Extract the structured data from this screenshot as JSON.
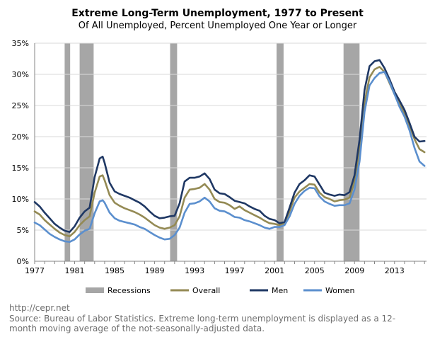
{
  "title": "Extreme Long-Term Unemployment, 1977 to Present",
  "subtitle": "Of All Unemployed, Percent Unemployed One Year or Longer",
  "source_url": "http://cepr.net",
  "source_note": "Source: Bureau of Labor Statistics. Extreme long-term unemployment is displayed as a 12-month moving average of the not-seasonally-adjusted data.",
  "colors": {
    "recessions": "#a6a6a6",
    "overall": "#948a54",
    "men": "#1f3864",
    "women": "#5b8fce",
    "grid": "#d9d9d9",
    "axis": "#868686"
  },
  "chart_data": {
    "type": "line",
    "title": "Extreme Long-Term Unemployment, 1977 to Present",
    "subtitle": "Of All Unemployed, Percent Unemployed One Year or Longer",
    "xlim": [
      1977.0,
      2016.2
    ],
    "ylim": [
      0,
      35
    ],
    "x_ticks": [
      "1977",
      "1981",
      "1985",
      "1989",
      "1993",
      "1997",
      "2001",
      "2005",
      "2009",
      "2013"
    ],
    "x_tick_values": [
      1977,
      1981,
      1985,
      1989,
      1993,
      1997,
      2001,
      2005,
      2009,
      2013
    ],
    "y_ticks": [
      "0%",
      "5%",
      "10%",
      "15%",
      "20%",
      "25%",
      "30%",
      "35%"
    ],
    "y_tick_values": [
      0,
      5,
      10,
      15,
      20,
      25,
      30,
      35
    ],
    "grid": "horizontal",
    "legend_position": "bottom",
    "recessions": {
      "name": "Recessions",
      "periods": [
        [
          1980.0,
          1980.55
        ],
        [
          1981.5,
          1982.9
        ],
        [
          1990.55,
          1991.25
        ],
        [
          2001.2,
          2001.9
        ],
        [
          2007.9,
          2009.5
        ]
      ]
    },
    "series": [
      {
        "name": "Overall",
        "color": "#948a54",
        "x": [
          1977.0,
          1977.5,
          1978.0,
          1978.5,
          1979.0,
          1979.5,
          1980.0,
          1980.5,
          1981.0,
          1981.5,
          1982.0,
          1982.5,
          1983.0,
          1983.5,
          1983.8,
          1984.0,
          1984.5,
          1985.0,
          1985.5,
          1986.0,
          1986.5,
          1987.0,
          1987.5,
          1988.0,
          1988.5,
          1989.0,
          1989.5,
          1990.0,
          1990.5,
          1991.0,
          1991.5,
          1992.0,
          1992.5,
          1993.0,
          1993.5,
          1994.0,
          1994.5,
          1995.0,
          1995.5,
          1996.0,
          1996.5,
          1997.0,
          1997.5,
          1998.0,
          1998.5,
          1999.0,
          1999.5,
          2000.0,
          2000.5,
          2001.0,
          2001.5,
          2002.0,
          2002.5,
          2003.0,
          2003.5,
          2004.0,
          2004.5,
          2005.0,
          2005.5,
          2006.0,
          2006.5,
          2007.0,
          2007.5,
          2008.0,
          2008.5,
          2009.0,
          2009.5,
          2010.0,
          2010.5,
          2011.0,
          2011.5,
          2012.0,
          2012.5,
          2013.0,
          2013.5,
          2014.0,
          2014.5,
          2015.0,
          2015.5,
          2016.0
        ],
        "y": [
          8.0,
          7.5,
          6.6,
          5.9,
          5.2,
          4.6,
          4.2,
          4.0,
          4.7,
          5.8,
          6.6,
          7.2,
          11.0,
          13.6,
          13.8,
          13.0,
          10.6,
          9.4,
          8.9,
          8.5,
          8.2,
          7.9,
          7.5,
          7.0,
          6.4,
          5.8,
          5.4,
          5.2,
          5.4,
          5.8,
          7.2,
          10.2,
          11.5,
          11.6,
          11.8,
          12.4,
          11.5,
          10.0,
          9.5,
          9.4,
          9.0,
          8.4,
          8.8,
          8.2,
          7.8,
          7.4,
          7.0,
          6.5,
          6.1,
          6.0,
          5.8,
          6.1,
          8.0,
          10.2,
          11.2,
          11.8,
          12.4,
          12.3,
          11.0,
          10.3,
          10.0,
          9.6,
          9.8,
          9.9,
          10.2,
          12.8,
          18.0,
          25.5,
          29.5,
          30.8,
          31.2,
          30.4,
          28.6,
          26.8,
          25.2,
          23.8,
          21.8,
          19.6,
          18.0,
          17.5
        ]
      },
      {
        "name": "Men",
        "color": "#1f3864",
        "x": [
          1977.0,
          1977.5,
          1978.0,
          1978.5,
          1979.0,
          1979.5,
          1980.0,
          1980.5,
          1981.0,
          1981.5,
          1982.0,
          1982.5,
          1983.0,
          1983.5,
          1983.8,
          1984.0,
          1984.5,
          1985.0,
          1985.5,
          1986.0,
          1986.5,
          1987.0,
          1987.5,
          1988.0,
          1988.5,
          1989.0,
          1989.5,
          1990.0,
          1990.5,
          1991.0,
          1991.5,
          1992.0,
          1992.5,
          1993.0,
          1993.5,
          1994.0,
          1994.5,
          1995.0,
          1995.5,
          1996.0,
          1996.5,
          1997.0,
          1997.5,
          1998.0,
          1998.5,
          1999.0,
          1999.5,
          2000.0,
          2000.5,
          2001.0,
          2001.5,
          2002.0,
          2002.5,
          2003.0,
          2003.5,
          2004.0,
          2004.5,
          2005.0,
          2005.5,
          2006.0,
          2006.5,
          2007.0,
          2007.5,
          2008.0,
          2008.5,
          2009.0,
          2009.5,
          2010.0,
          2010.5,
          2011.0,
          2011.5,
          2012.0,
          2012.5,
          2013.0,
          2013.5,
          2014.0,
          2014.5,
          2015.0,
          2015.5,
          2016.0
        ],
        "y": [
          9.5,
          8.8,
          7.8,
          6.9,
          6.0,
          5.4,
          4.9,
          4.7,
          5.6,
          7.0,
          8.0,
          8.6,
          13.5,
          16.5,
          16.8,
          15.8,
          12.6,
          11.2,
          10.8,
          10.5,
          10.2,
          9.8,
          9.4,
          8.8,
          8.0,
          7.3,
          6.9,
          7.0,
          7.2,
          7.3,
          9.3,
          12.8,
          13.4,
          13.4,
          13.6,
          14.1,
          13.2,
          11.5,
          10.9,
          10.8,
          10.3,
          9.7,
          9.5,
          9.3,
          8.8,
          8.4,
          8.1,
          7.3,
          6.8,
          6.6,
          6.1,
          6.3,
          8.6,
          11.0,
          12.4,
          13.0,
          13.8,
          13.6,
          12.3,
          11.0,
          10.7,
          10.5,
          10.7,
          10.6,
          11.1,
          13.8,
          19.5,
          27.5,
          31.3,
          32.1,
          32.3,
          31.0,
          29.2,
          27.2,
          25.8,
          24.3,
          22.2,
          20.0,
          19.2,
          19.3
        ]
      },
      {
        "name": "Women",
        "color": "#5b8fce",
        "x": [
          1977.0,
          1977.5,
          1978.0,
          1978.5,
          1979.0,
          1979.5,
          1980.0,
          1980.5,
          1981.0,
          1981.5,
          1982.0,
          1982.5,
          1983.0,
          1983.5,
          1983.8,
          1984.0,
          1984.5,
          1985.0,
          1985.5,
          1986.0,
          1986.5,
          1987.0,
          1987.5,
          1988.0,
          1988.5,
          1989.0,
          1989.5,
          1990.0,
          1990.5,
          1991.0,
          1991.5,
          1992.0,
          1992.5,
          1993.0,
          1993.5,
          1994.0,
          1994.5,
          1995.0,
          1995.5,
          1996.0,
          1996.5,
          1997.0,
          1997.5,
          1998.0,
          1998.5,
          1999.0,
          1999.5,
          2000.0,
          2000.5,
          2001.0,
          2001.5,
          2002.0,
          2002.5,
          2003.0,
          2003.5,
          2004.0,
          2004.5,
          2005.0,
          2005.5,
          2006.0,
          2006.5,
          2007.0,
          2007.5,
          2008.0,
          2008.5,
          2009.0,
          2009.5,
          2010.0,
          2010.5,
          2011.0,
          2011.5,
          2012.0,
          2012.5,
          2013.0,
          2013.5,
          2014.0,
          2014.5,
          2015.0,
          2015.5,
          2016.0
        ],
        "y": [
          6.2,
          5.8,
          5.1,
          4.4,
          3.9,
          3.5,
          3.2,
          3.1,
          3.5,
          4.3,
          4.9,
          5.2,
          7.7,
          9.6,
          9.8,
          9.4,
          7.8,
          6.9,
          6.5,
          6.3,
          6.1,
          5.9,
          5.5,
          5.2,
          4.7,
          4.2,
          3.8,
          3.5,
          3.6,
          4.2,
          5.4,
          7.8,
          9.2,
          9.3,
          9.6,
          10.2,
          9.6,
          8.5,
          8.1,
          8.0,
          7.6,
          7.1,
          7.0,
          6.6,
          6.4,
          6.1,
          5.8,
          5.4,
          5.2,
          5.5,
          5.5,
          5.8,
          7.2,
          9.2,
          10.5,
          11.3,
          11.8,
          11.7,
          10.4,
          9.6,
          9.2,
          8.9,
          9.0,
          9.0,
          9.3,
          11.5,
          16.0,
          24.0,
          28.2,
          29.4,
          30.2,
          30.4,
          28.8,
          26.8,
          24.8,
          23.2,
          21.0,
          18.2,
          16.0,
          15.3
        ]
      }
    ]
  }
}
